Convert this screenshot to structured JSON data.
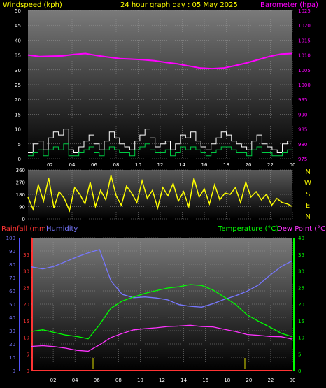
{
  "header": {
    "windspeed_label": "Windspeed (kph)",
    "title": "24 hour graph day : 05 May 2025",
    "barometer_label": "Barometer (hpa)",
    "windspeed_color": "#ffff00",
    "title_color": "#ffff00",
    "barometer_color": "#ff00ff"
  },
  "lower_header": {
    "rainfall_label": "Rainfall (mm)",
    "humidity_label": "Humidity",
    "temperature_label": "Temperature (°C)",
    "dewpoint_label": "Dew Point (°C)",
    "rainfall_color": "#ff3333",
    "humidity_color": "#7777ff",
    "temperature_color": "#00ff00",
    "dewpoint_color": "#ff33ff"
  },
  "chart_data": [
    {
      "type": "line",
      "name": "wind-barometer",
      "x_ticks": [
        "02",
        "04",
        "06",
        "08",
        "10",
        "12",
        "14",
        "16",
        "18",
        "20",
        "22",
        "00"
      ],
      "y_left_ticks": [
        0,
        5,
        10,
        15,
        20,
        25,
        30,
        35,
        40,
        45,
        50
      ],
      "y_left_range": [
        0,
        50
      ],
      "y_right_ticks": [
        975,
        980,
        985,
        990,
        995,
        1000,
        1005,
        1010,
        1015,
        1020,
        1025
      ],
      "y_right_range": [
        975,
        1025
      ],
      "grid": true,
      "series": [
        {
          "color": "#ffffff",
          "axis": "left",
          "values": [
            2,
            5,
            6,
            3,
            7,
            9,
            8,
            10,
            3,
            2,
            4,
            6,
            8,
            5,
            3,
            6,
            9,
            7,
            5,
            4,
            3,
            6,
            8,
            10,
            7,
            4,
            5,
            6,
            3,
            5,
            8,
            7,
            9,
            6,
            4,
            3,
            5,
            7,
            9,
            8,
            6,
            5,
            4,
            3,
            6,
            8,
            5,
            4,
            3,
            2,
            5,
            6
          ]
        },
        {
          "color": "#00cc44",
          "axis": "left",
          "values": [
            1,
            2,
            3,
            1,
            3,
            4,
            3,
            5,
            1,
            1,
            2,
            3,
            4,
            2,
            1,
            3,
            4,
            3,
            2,
            2,
            1,
            3,
            4,
            5,
            3,
            2,
            2,
            3,
            1,
            2,
            4,
            3,
            4,
            3,
            2,
            1,
            2,
            3,
            4,
            4,
            3,
            2,
            2,
            1,
            3,
            4,
            2,
            2,
            1,
            1,
            2,
            3
          ]
        },
        {
          "color": "#ff00ff",
          "axis": "right",
          "values": [
            1010,
            1009.5,
            1009.6,
            1009.7,
            1010.2,
            1010.5,
            1009.8,
            1009.3,
            1008.8,
            1008.6,
            1008.4,
            1008.1,
            1007.5,
            1007.0,
            1006.3,
            1005.6,
            1005.4,
            1005.6,
            1006.4,
            1007.3,
            1008.4,
            1009.5,
            1010.3,
            1010.5
          ]
        }
      ]
    },
    {
      "type": "scatter",
      "name": "wind-direction",
      "y_left_ticks": [
        0,
        90,
        180,
        270,
        360
      ],
      "y_right_ticks": [
        "N",
        "W",
        "S",
        "E",
        "N"
      ],
      "y_range": [
        0,
        360
      ],
      "series": [
        {
          "color": "#ffff00",
          "values": [
            160,
            70,
            250,
            130,
            300,
            80,
            200,
            150,
            60,
            230,
            180,
            110,
            270,
            90,
            210,
            140,
            320,
            170,
            100,
            240,
            190,
            120,
            280,
            150,
            210,
            80,
            230,
            170,
            260,
            130,
            200,
            90,
            300,
            160,
            220,
            110,
            250,
            140,
            190,
            180,
            230,
            120,
            270,
            160,
            200,
            140,
            180,
            100,
            150,
            120,
            110,
            90
          ]
        }
      ]
    },
    {
      "type": "line",
      "name": "rain-humidity-temperature",
      "x_ticks": [
        "02",
        "04",
        "06",
        "08",
        "10",
        "12",
        "14",
        "16",
        "18",
        "20",
        "22",
        "00"
      ],
      "y_left_ticks": [
        0,
        10,
        20,
        30,
        40,
        50,
        60,
        70,
        80,
        90,
        100
      ],
      "y_left_range": [
        0,
        100
      ],
      "y_left2_ticks": [
        0,
        5,
        10,
        15,
        20,
        25,
        30,
        35
      ],
      "y_right_ticks": [
        0,
        5,
        10,
        15,
        20,
        25,
        30,
        35,
        40
      ],
      "y_right_range": [
        0,
        40
      ],
      "grid": true,
      "series": [
        {
          "color": "#7777ff",
          "axis": "left",
          "values": [
            78,
            77,
            79,
            82,
            85,
            88,
            91,
            68,
            58,
            55,
            55,
            54,
            53,
            50,
            49,
            48,
            50,
            53,
            56,
            60,
            65,
            72,
            78,
            82
          ]
        },
        {
          "color": "#00ff00",
          "axis": "right",
          "values": [
            12,
            12.5,
            11.5,
            10.5,
            10,
            9.5,
            14,
            19,
            21,
            22,
            23,
            24,
            25,
            25.5,
            26,
            25.5,
            24,
            22,
            20,
            17,
            15,
            13,
            11,
            10
          ]
        },
        {
          "color": "#ff33ff",
          "axis": "right",
          "values": [
            7.5,
            7.5,
            7,
            6.5,
            6,
            6,
            8,
            10,
            11,
            12,
            12.5,
            13,
            13.5,
            13.5,
            13.5,
            13,
            13,
            12.5,
            12,
            11,
            10.5,
            10,
            10,
            9.5
          ]
        },
        {
          "color": "#ff3333",
          "axis": "left2",
          "values": [
            0,
            0,
            0,
            0,
            0,
            0,
            0,
            0,
            0,
            0,
            0,
            0,
            0,
            0,
            0,
            0,
            0,
            0,
            0,
            0,
            0,
            0,
            0,
            0
          ]
        }
      ]
    }
  ]
}
